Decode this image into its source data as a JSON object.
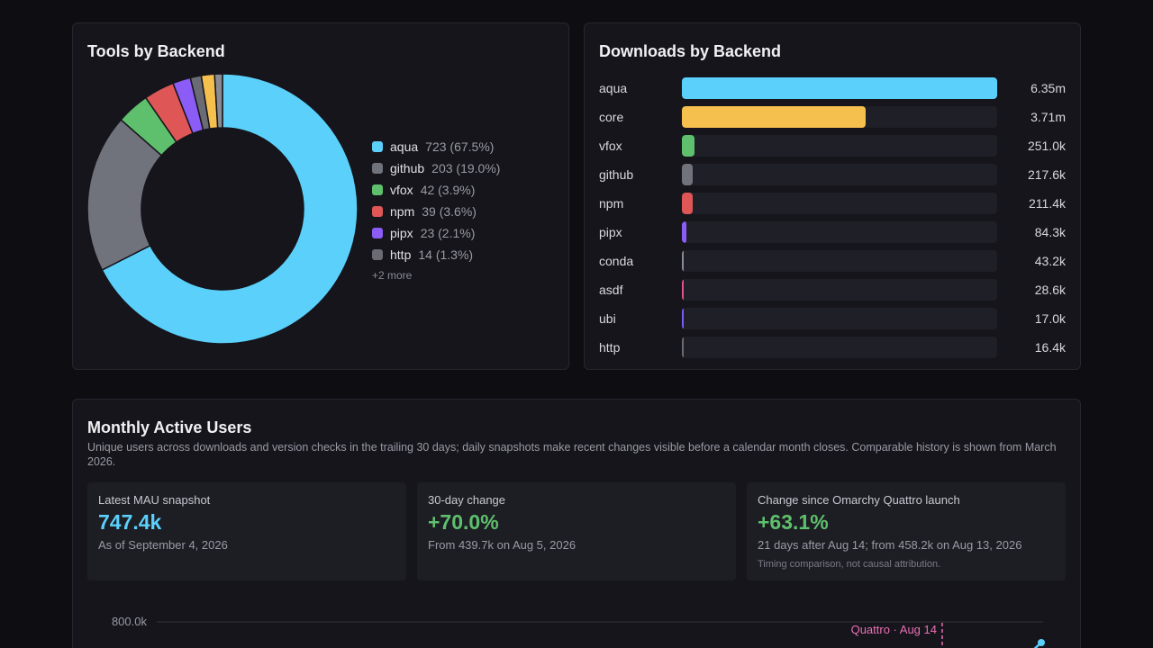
{
  "tools": {
    "title": "Tools by Backend",
    "items": [
      {
        "name": "aqua",
        "value": 723,
        "pct": "723 (67.5%)",
        "color": "#5bd0fb"
      },
      {
        "name": "github",
        "value": 203,
        "pct": "203 (19.0%)",
        "color": "#70727c"
      },
      {
        "name": "vfox",
        "value": 42,
        "pct": "42 (3.9%)",
        "color": "#5ec06c"
      },
      {
        "name": "npm",
        "value": 39,
        "pct": "39 (3.6%)",
        "color": "#df5656"
      },
      {
        "name": "pipx",
        "value": 23,
        "pct": "23 (2.1%)",
        "color": "#8b5cf6"
      },
      {
        "name": "http",
        "value": 14,
        "pct": "14 (1.3%)",
        "color": "#6b6b74"
      }
    ],
    "hidden_slices": [
      {
        "value": 17,
        "color": "#f5c04e"
      },
      {
        "value": 10,
        "color": "#8a8a94"
      }
    ],
    "more": "+2 more"
  },
  "downloads": {
    "title": "Downloads by Backend",
    "items": [
      {
        "name": "aqua",
        "value": 6.35,
        "label": "6.35m",
        "color": "#5bd0fb"
      },
      {
        "name": "core",
        "value": 3.71,
        "label": "3.71m",
        "color": "#f5c04e"
      },
      {
        "name": "vfox",
        "value": 0.251,
        "label": "251.0k",
        "color": "#5ec06c"
      },
      {
        "name": "github",
        "value": 0.2176,
        "label": "217.6k",
        "color": "#70727c"
      },
      {
        "name": "npm",
        "value": 0.2114,
        "label": "211.4k",
        "color": "#df5656"
      },
      {
        "name": "pipx",
        "value": 0.0843,
        "label": "84.3k",
        "color": "#8b5cf6"
      },
      {
        "name": "conda",
        "value": 0.0432,
        "label": "43.2k",
        "color": "#8a8a94"
      },
      {
        "name": "asdf",
        "value": 0.0286,
        "label": "28.6k",
        "color": "#e0508a"
      },
      {
        "name": "ubi",
        "value": 0.017,
        "label": "17.0k",
        "color": "#7c5cf6"
      },
      {
        "name": "http",
        "value": 0.0164,
        "label": "16.4k",
        "color": "#6b6b74"
      }
    ],
    "max": 6.35
  },
  "mau": {
    "title": "Monthly Active Users",
    "description": "Unique users across downloads and version checks in the trailing 30 days; daily snapshots make recent changes visible before a calendar month closes. Comparable history is shown from March 2026.",
    "stats": {
      "latest": {
        "label": "Latest MAU snapshot",
        "value": "747.4k",
        "sub": "As of September 4, 2026",
        "color": "#5bd0fb"
      },
      "change30": {
        "label": "30-day change",
        "value": "+70.0%",
        "sub": "From 439.7k on Aug 5, 2026",
        "color": "#5ec06c"
      },
      "quattro": {
        "label": "Change since Omarchy Quattro launch",
        "value": "+63.1%",
        "sub": "21 days after Aug 14; from 458.2k on Aug 13, 2026",
        "note": "Timing comparison, not causal attribution.",
        "color": "#5ec06c"
      }
    },
    "chart": {
      "y_tick": "800.0k",
      "marker_label": "Quattro · Aug 14",
      "marker_color": "#ec6fb5",
      "line_color": "#5bd0fb"
    }
  }
}
